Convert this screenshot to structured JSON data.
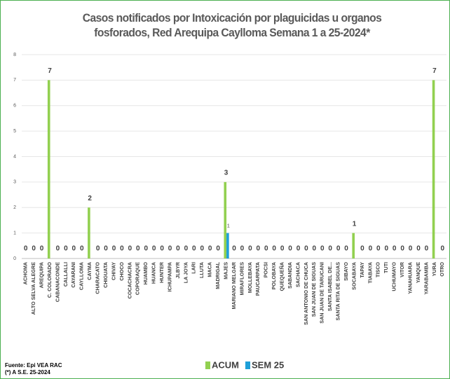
{
  "chart_data": {
    "type": "bar",
    "title": "Casos notificados por Intoxicación por plaguicidas u organos fosforados, Red Arequipa Caylloma Semana 1 a 25-2024*",
    "categories": [
      "ACHOMA",
      "ALTO SELVA ALEGRE",
      "AREQUIPA",
      "C. COLORADO",
      "CABANACONDE",
      "CALLALLI",
      "CAYARANI",
      "CAYLLOMA",
      "CAYMA",
      "CHARACATO",
      "CHIGUATA",
      "CHIVAY",
      "CHOCO",
      "COCACHACRA",
      "COPORAQUE",
      "HUAMBO",
      "HUANCA",
      "HUNTER",
      "ICHUPAMPA",
      "JLBYR",
      "LA JOYA",
      "LARI",
      "LLUTA",
      "MACA",
      "MADRIGAL",
      "MAJES",
      "MARIANO MELGAR",
      "MIRAFLORES",
      "MOLLEBAYA",
      "PAUCARPATA",
      "POCSI",
      "POLOBAYA",
      "QUEQUEÑA",
      "SABANDIA",
      "SACHACA",
      "SAN ANTONIO DE CHUCA",
      "SAN JUAN DE SIGUAS",
      "SAN JUAN DE TARUCANI",
      "SANTA ISABEL DE...",
      "SANTA RITA DE SIGUAS",
      "SIBAYO",
      "SOCABAYA",
      "TAPAY",
      "TIABAYA",
      "TISCO",
      "TUTI",
      "UCHUMAYO",
      "VITOR",
      "YANAHUARA",
      "YANQUE",
      "YARABAMBA",
      "YURA",
      "OTRO"
    ],
    "series": [
      {
        "name": "ACUM",
        "color": "#92d050",
        "values": [
          0,
          0,
          0,
          7,
          0,
          0,
          0,
          0,
          2,
          0,
          0,
          0,
          0,
          0,
          0,
          0,
          0,
          0,
          0,
          0,
          0,
          0,
          0,
          0,
          0,
          3,
          0,
          0,
          0,
          0,
          0,
          0,
          0,
          0,
          0,
          0,
          0,
          0,
          0,
          0,
          0,
          1,
          0,
          0,
          0,
          0,
          0,
          0,
          0,
          0,
          0,
          7,
          0
        ]
      },
      {
        "name": "SEM 25",
        "color": "#1e9fd8",
        "values": [
          null,
          null,
          null,
          null,
          null,
          null,
          null,
          null,
          null,
          null,
          null,
          null,
          null,
          null,
          null,
          null,
          null,
          null,
          null,
          null,
          null,
          null,
          null,
          null,
          null,
          1,
          null,
          null,
          null,
          null,
          null,
          null,
          null,
          null,
          null,
          null,
          null,
          null,
          null,
          null,
          null,
          null,
          null,
          null,
          null,
          null,
          null,
          null,
          null,
          null,
          null,
          null,
          null
        ]
      }
    ],
    "ylim": [
      0,
      8
    ],
    "yticks": [
      0,
      1,
      2,
      3,
      4,
      5,
      6,
      7,
      8
    ],
    "grid": true,
    "legend": "bottom",
    "source": "Fuente: Epi VEA RAC",
    "note": "(*) A S.E. 25-2024"
  }
}
